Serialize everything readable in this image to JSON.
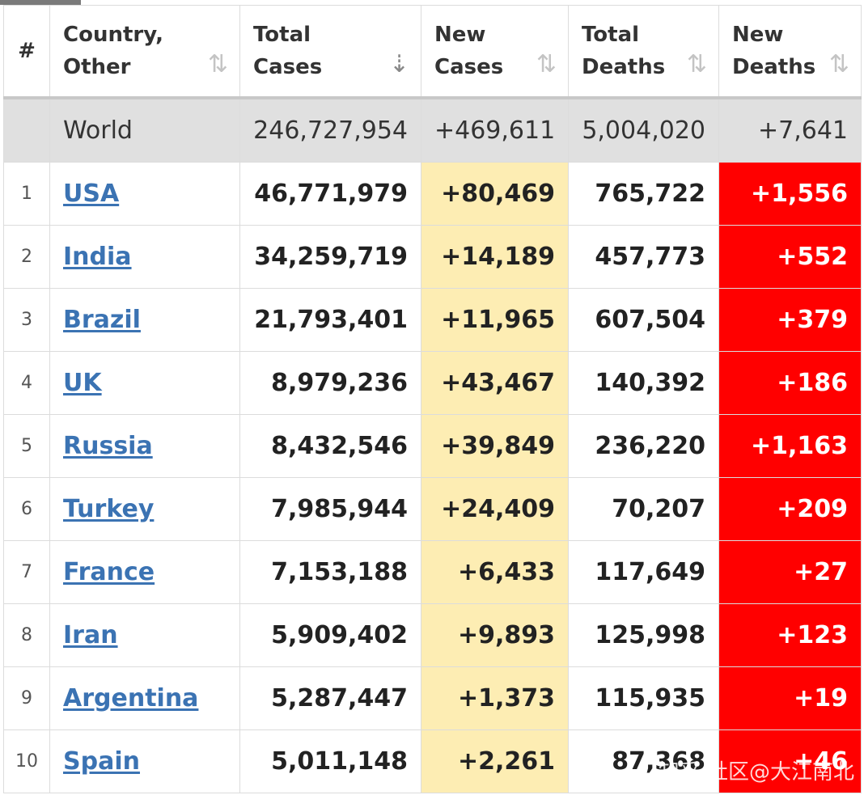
{
  "columns": {
    "rank": "#",
    "country": "Country,\nOther",
    "total_cases": "Total\nCases",
    "new_cases": "New\nCases",
    "total_deaths": "Total\nDeaths",
    "new_deaths": "New\nDeaths"
  },
  "sort": {
    "active_column": "total_cases",
    "direction": "descending"
  },
  "colors": {
    "new_cases_bg": "#fdedb3",
    "new_deaths_bg": "#ff0000",
    "link": "#3b73b3",
    "world_bg": "#e0e0e0"
  },
  "world": {
    "name": "World",
    "total_cases": "246,727,954",
    "new_cases": "+469,611",
    "total_deaths": "5,004,020",
    "new_deaths": "+7,641"
  },
  "rows": [
    {
      "rank": "1",
      "country": "USA",
      "total_cases": "46,771,979",
      "new_cases": "+80,469",
      "total_deaths": "765,722",
      "new_deaths": "+1,556"
    },
    {
      "rank": "2",
      "country": "India",
      "total_cases": "34,259,719",
      "new_cases": "+14,189",
      "total_deaths": "457,773",
      "new_deaths": "+552"
    },
    {
      "rank": "3",
      "country": "Brazil",
      "total_cases": "21,793,401",
      "new_cases": "+11,965",
      "total_deaths": "607,504",
      "new_deaths": "+379"
    },
    {
      "rank": "4",
      "country": "UK",
      "total_cases": "8,979,236",
      "new_cases": "+43,467",
      "total_deaths": "140,392",
      "new_deaths": "+186"
    },
    {
      "rank": "5",
      "country": "Russia",
      "total_cases": "8,432,546",
      "new_cases": "+39,849",
      "total_deaths": "236,220",
      "new_deaths": "+1,163"
    },
    {
      "rank": "6",
      "country": "Turkey",
      "total_cases": "7,985,944",
      "new_cases": "+24,409",
      "total_deaths": "70,207",
      "new_deaths": "+209"
    },
    {
      "rank": "7",
      "country": "France",
      "total_cases": "7,153,188",
      "new_cases": "+6,433",
      "total_deaths": "117,649",
      "new_deaths": "+27"
    },
    {
      "rank": "8",
      "country": "Iran",
      "total_cases": "5,909,402",
      "new_cases": "+9,893",
      "total_deaths": "125,998",
      "new_deaths": "+123"
    },
    {
      "rank": "9",
      "country": "Argentina",
      "total_cases": "5,287,447",
      "new_cases": "+1,373",
      "total_deaths": "115,935",
      "new_deaths": "+19"
    },
    {
      "rank": "10",
      "country": "Spain",
      "total_cases": "5,011,148",
      "new_cases": "+2,261",
      "total_deaths": "87,368",
      "new_deaths": "+46"
    }
  ],
  "watermark": "知乎 社区@大江南北"
}
